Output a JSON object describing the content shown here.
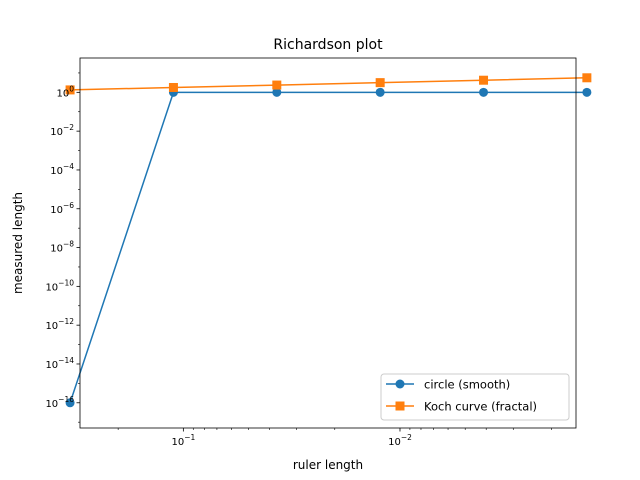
{
  "chart_data": {
    "type": "line",
    "title": "Richardson plot",
    "xlabel": "ruler length",
    "ylabel": "measured length",
    "xscale": "log",
    "yscale": "log",
    "x_inverted": true,
    "xlim": [
      0.3,
      0.00154
    ],
    "ylim_exp": [
      -17.3,
      1.77
    ],
    "grid": false,
    "legend_position": "lower-right",
    "x": [
      0.333333,
      0.111111,
      0.037037,
      0.012346,
      0.004115,
      0.001372
    ],
    "x_ticks": [
      {
        "value": 0.1,
        "base": "10",
        "exp": "−1"
      },
      {
        "value": 0.01,
        "base": "10",
        "exp": "−2"
      }
    ],
    "y_ticks": [
      {
        "exp_value": 0,
        "base": "10",
        "exp": "0"
      },
      {
        "exp_value": -2,
        "base": "10",
        "exp": "−2"
      },
      {
        "exp_value": -4,
        "base": "10",
        "exp": "−4"
      },
      {
        "exp_value": -6,
        "base": "10",
        "exp": "−6"
      },
      {
        "exp_value": -8,
        "base": "10",
        "exp": "−8"
      },
      {
        "exp_value": -10,
        "base": "10",
        "exp": "−10"
      },
      {
        "exp_value": -12,
        "base": "10",
        "exp": "−12"
      },
      {
        "exp_value": -14,
        "base": "10",
        "exp": "−14"
      },
      {
        "exp_value": -16,
        "base": "10",
        "exp": "−16"
      }
    ],
    "series": [
      {
        "name": "circle (smooth)",
        "color": "#1f77b4",
        "marker": "circle",
        "y_exp": [
          -16.0,
          0.0,
          0.0,
          0.0,
          0.0,
          0.0
        ]
      },
      {
        "name": "Koch curve (fractal)",
        "color": "#ff7f0e",
        "marker": "square",
        "y_exp": [
          0.125,
          0.25,
          0.375,
          0.5,
          0.625,
          0.75
        ]
      }
    ]
  }
}
